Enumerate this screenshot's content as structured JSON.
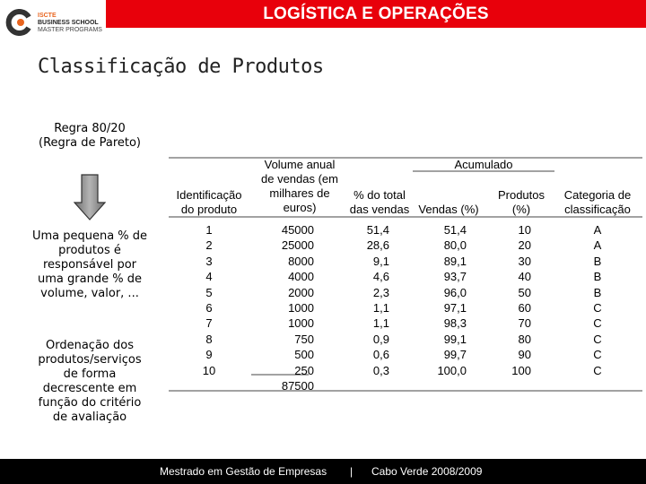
{
  "header": {
    "title": "LOGÍSTICA E OPERAÇÕES",
    "logo": {
      "line1": "ISCTE",
      "line2": "BUSINESS SCHOOL",
      "line3": "MASTER PROGRAMS"
    }
  },
  "slide": {
    "title": "Classificação de Produtos",
    "rule_line1": "Regra 80/20",
    "rule_line2": "(Regra de Pareto)",
    "small_share": [
      "Uma pequena % de",
      "produtos é",
      "responsável por",
      "uma grande % de",
      "volume, valor, ..."
    ],
    "ordering": [
      "Ordenação dos",
      "produtos/serviços",
      "de forma",
      "decrescente em",
      "função do critério",
      "de avaliação"
    ]
  },
  "table": {
    "group_header": "Acumulado",
    "headers": {
      "id": [
        "Identificação",
        "do produto"
      ],
      "volume": [
        "Volume anual",
        "de vendas (em",
        "milhares de",
        "euros)"
      ],
      "pct_total": [
        "% do total",
        "das vendas"
      ],
      "sales_pct": [
        "Vendas (%)"
      ],
      "products_pct": [
        "Produtos",
        "(%)"
      ],
      "category": [
        "Categoria de",
        "classificação"
      ]
    },
    "rows": [
      {
        "id": "1",
        "volume": "45000",
        "pct_total": "51,4",
        "sales_pct": "51,4",
        "products_pct": "10",
        "category": "A"
      },
      {
        "id": "2",
        "volume": "25000",
        "pct_total": "28,6",
        "sales_pct": "80,0",
        "products_pct": "20",
        "category": "A"
      },
      {
        "id": "3",
        "volume": "8000",
        "pct_total": "9,1",
        "sales_pct": "89,1",
        "products_pct": "30",
        "category": "B"
      },
      {
        "id": "4",
        "volume": "4000",
        "pct_total": "4,6",
        "sales_pct": "93,7",
        "products_pct": "40",
        "category": "B"
      },
      {
        "id": "5",
        "volume": "2000",
        "pct_total": "2,3",
        "sales_pct": "96,0",
        "products_pct": "50",
        "category": "B"
      },
      {
        "id": "6",
        "volume": "1000",
        "pct_total": "1,1",
        "sales_pct": "97,1",
        "products_pct": "60",
        "category": "C"
      },
      {
        "id": "7",
        "volume": "1000",
        "pct_total": "1,1",
        "sales_pct": "98,3",
        "products_pct": "70",
        "category": "C"
      },
      {
        "id": "8",
        "volume": "750",
        "pct_total": "0,9",
        "sales_pct": "99,1",
        "products_pct": "80",
        "category": "C"
      },
      {
        "id": "9",
        "volume": "500",
        "pct_total": "0,6",
        "sales_pct": "99,7",
        "products_pct": "90",
        "category": "C"
      },
      {
        "id": "10",
        "volume": "250",
        "pct_total": "0,3",
        "sales_pct": "100,0",
        "products_pct": "100",
        "category": "C"
      }
    ],
    "total": "87500"
  },
  "footer": {
    "program": "Mestrado em Gestão de Empresas",
    "separator": "|",
    "location": "Cabo Verde 2008/2009"
  },
  "colors": {
    "header_band": "#e8000b",
    "footer_band": "#000000",
    "logo_accent": "#e8641e"
  }
}
